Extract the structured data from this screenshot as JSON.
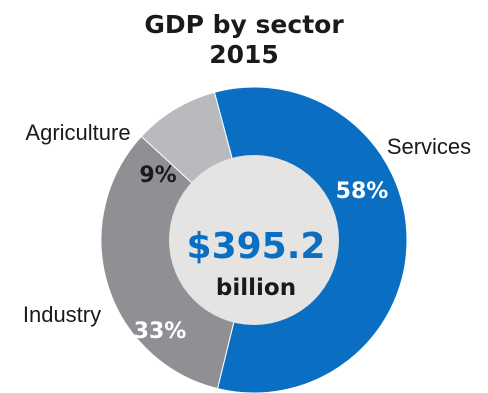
{
  "chart_data": {
    "type": "pie",
    "title": "GDP by sector",
    "subtitle": "2015",
    "center_value": "$395.2",
    "center_unit": "billion",
    "slices": [
      {
        "category": "Services",
        "value": 58,
        "label": "58%",
        "color": "#0a6fc2"
      },
      {
        "category": "Industry",
        "value": 33,
        "label": "33%",
        "color": "#8f9093"
      },
      {
        "category": "Agriculture",
        "value": 9,
        "label": "9%",
        "color": "#b9babd"
      }
    ],
    "center_color": "#e6e3e3",
    "center_text_color": "#0a6fc2"
  }
}
